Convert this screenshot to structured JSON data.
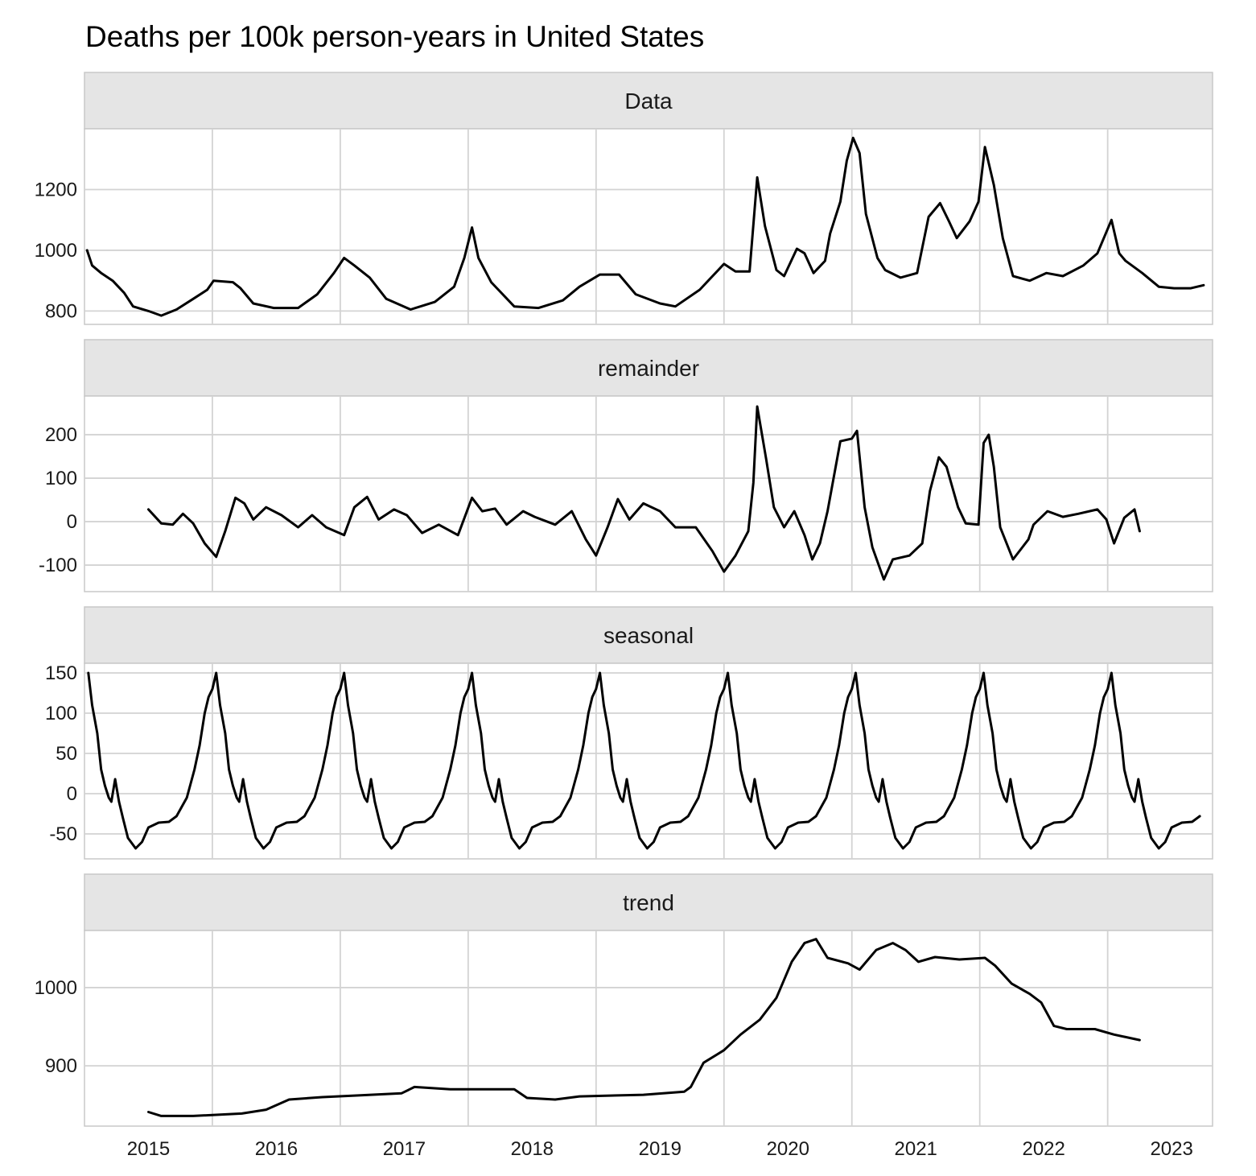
{
  "chart_data": {
    "type": "line",
    "title": "Deaths per 100k person-years in United States",
    "x_tick_labels": [
      "2015",
      "2016",
      "2017",
      "2018",
      "2019",
      "2020",
      "2021",
      "2022",
      "2023"
    ],
    "x_gridlines": [
      2016,
      2017,
      2018,
      2019,
      2020,
      2021,
      2022,
      2023
    ],
    "xlim": [
      2015.0,
      2023.82
    ],
    "panels": [
      {
        "name": "Data",
        "ylim": [
          756,
          1400
        ],
        "y_ticks": [
          800,
          1000,
          1200
        ],
        "y_tick_labels": [
          "800",
          "1000",
          "1200"
        ],
        "points": [
          [
            2015.02,
            1000
          ],
          [
            2015.06,
            950
          ],
          [
            2015.13,
            925
          ],
          [
            2015.22,
            900
          ],
          [
            2015.31,
            860
          ],
          [
            2015.38,
            815
          ],
          [
            2015.5,
            800
          ],
          [
            2015.6,
            785
          ],
          [
            2015.72,
            805
          ],
          [
            2015.85,
            840
          ],
          [
            2015.96,
            870
          ],
          [
            2016.01,
            900
          ],
          [
            2016.16,
            895
          ],
          [
            2016.22,
            875
          ],
          [
            2016.32,
            825
          ],
          [
            2016.48,
            810
          ],
          [
            2016.67,
            810
          ],
          [
            2016.82,
            855
          ],
          [
            2016.95,
            925
          ],
          [
            2017.03,
            975
          ],
          [
            2017.11,
            950
          ],
          [
            2017.23,
            910
          ],
          [
            2017.36,
            840
          ],
          [
            2017.55,
            805
          ],
          [
            2017.74,
            830
          ],
          [
            2017.89,
            880
          ],
          [
            2017.97,
            975
          ],
          [
            2018.03,
            1075
          ],
          [
            2018.08,
            975
          ],
          [
            2018.18,
            895
          ],
          [
            2018.36,
            815
          ],
          [
            2018.55,
            810
          ],
          [
            2018.74,
            835
          ],
          [
            2018.87,
            880
          ],
          [
            2019.03,
            920
          ],
          [
            2019.18,
            920
          ],
          [
            2019.31,
            855
          ],
          [
            2019.5,
            825
          ],
          [
            2019.62,
            815
          ],
          [
            2019.81,
            870
          ],
          [
            2020.0,
            955
          ],
          [
            2020.09,
            930
          ],
          [
            2020.2,
            930
          ],
          [
            2020.26,
            1240
          ],
          [
            2020.32,
            1080
          ],
          [
            2020.41,
            935
          ],
          [
            2020.47,
            915
          ],
          [
            2020.57,
            1005
          ],
          [
            2020.63,
            990
          ],
          [
            2020.7,
            925
          ],
          [
            2020.79,
            965
          ],
          [
            2020.83,
            1055
          ],
          [
            2020.91,
            1160
          ],
          [
            2020.96,
            1295
          ],
          [
            2021.01,
            1370
          ],
          [
            2021.06,
            1320
          ],
          [
            2021.11,
            1120
          ],
          [
            2021.2,
            975
          ],
          [
            2021.26,
            935
          ],
          [
            2021.38,
            910
          ],
          [
            2021.51,
            925
          ],
          [
            2021.6,
            1110
          ],
          [
            2021.69,
            1155
          ],
          [
            2021.76,
            1095
          ],
          [
            2021.82,
            1040
          ],
          [
            2021.92,
            1095
          ],
          [
            2021.99,
            1160
          ],
          [
            2022.04,
            1340
          ],
          [
            2022.11,
            1215
          ],
          [
            2022.18,
            1040
          ],
          [
            2022.26,
            915
          ],
          [
            2022.39,
            900
          ],
          [
            2022.52,
            925
          ],
          [
            2022.65,
            915
          ],
          [
            2022.81,
            950
          ],
          [
            2022.92,
            990
          ],
          [
            2023.03,
            1100
          ],
          [
            2023.09,
            990
          ],
          [
            2023.14,
            965
          ],
          [
            2023.27,
            925
          ],
          [
            2023.4,
            880
          ],
          [
            2023.52,
            875
          ],
          [
            2023.65,
            875
          ],
          [
            2023.75,
            885
          ]
        ]
      },
      {
        "name": "remainder",
        "ylim": [
          -161,
          289
        ],
        "y_ticks": [
          -100,
          0,
          100,
          200
        ],
        "y_tick_labels": [
          "-100",
          "0",
          "100",
          "200"
        ],
        "points": [
          [
            2015.5,
            28
          ],
          [
            2015.6,
            -4
          ],
          [
            2015.69,
            -7
          ],
          [
            2015.77,
            18
          ],
          [
            2015.85,
            -4
          ],
          [
            2015.94,
            -50
          ],
          [
            2016.03,
            -81
          ],
          [
            2016.1,
            -22
          ],
          [
            2016.18,
            55
          ],
          [
            2016.25,
            42
          ],
          [
            2016.32,
            5
          ],
          [
            2016.42,
            33
          ],
          [
            2016.54,
            15
          ],
          [
            2016.67,
            -13
          ],
          [
            2016.78,
            15
          ],
          [
            2016.89,
            -13
          ],
          [
            2017.03,
            -31
          ],
          [
            2017.11,
            33
          ],
          [
            2017.21,
            57
          ],
          [
            2017.3,
            5
          ],
          [
            2017.42,
            28
          ],
          [
            2017.52,
            15
          ],
          [
            2017.64,
            -26
          ],
          [
            2017.77,
            -7
          ],
          [
            2017.92,
            -31
          ],
          [
            2018.03,
            55
          ],
          [
            2018.11,
            24
          ],
          [
            2018.21,
            30
          ],
          [
            2018.3,
            -7
          ],
          [
            2018.43,
            24
          ],
          [
            2018.52,
            11
          ],
          [
            2018.68,
            -7
          ],
          [
            2018.81,
            24
          ],
          [
            2018.92,
            -41
          ],
          [
            2019.0,
            -78
          ],
          [
            2019.09,
            -13
          ],
          [
            2019.17,
            52
          ],
          [
            2019.26,
            5
          ],
          [
            2019.37,
            42
          ],
          [
            2019.5,
            24
          ],
          [
            2019.62,
            -13
          ],
          [
            2019.78,
            -13
          ],
          [
            2019.91,
            -68
          ],
          [
            2020.0,
            -115
          ],
          [
            2020.09,
            -78
          ],
          [
            2020.19,
            -22
          ],
          [
            2020.23,
            89
          ],
          [
            2020.26,
            265
          ],
          [
            2020.33,
            144
          ],
          [
            2020.39,
            33
          ],
          [
            2020.47,
            -13
          ],
          [
            2020.55,
            24
          ],
          [
            2020.63,
            -31
          ],
          [
            2020.69,
            -87
          ],
          [
            2020.75,
            -50
          ],
          [
            2020.81,
            24
          ],
          [
            2020.91,
            185
          ],
          [
            2021.0,
            191
          ],
          [
            2021.04,
            209
          ],
          [
            2021.1,
            33
          ],
          [
            2021.16,
            -59
          ],
          [
            2021.25,
            -133
          ],
          [
            2021.32,
            -87
          ],
          [
            2021.45,
            -78
          ],
          [
            2021.55,
            -50
          ],
          [
            2021.61,
            70
          ],
          [
            2021.68,
            148
          ],
          [
            2021.74,
            126
          ],
          [
            2021.83,
            33
          ],
          [
            2021.89,
            -4
          ],
          [
            2021.99,
            -7
          ],
          [
            2022.03,
            181
          ],
          [
            2022.07,
            200
          ],
          [
            2022.11,
            126
          ],
          [
            2022.16,
            -13
          ],
          [
            2022.26,
            -87
          ],
          [
            2022.38,
            -41
          ],
          [
            2022.42,
            -7
          ],
          [
            2022.53,
            24
          ],
          [
            2022.65,
            11
          ],
          [
            2022.77,
            18
          ],
          [
            2022.92,
            28
          ],
          [
            2022.99,
            5
          ],
          [
            2023.05,
            -50
          ],
          [
            2023.13,
            9
          ],
          [
            2023.21,
            28
          ],
          [
            2023.25,
            -22
          ]
        ]
      },
      {
        "name": "seasonal",
        "ylim": [
          -81,
          162
        ],
        "y_ticks": [
          -50,
          0,
          50,
          100,
          150
        ],
        "y_tick_labels": [
          "-50",
          "0",
          "50",
          "100",
          "150"
        ],
        "range": [
          2015.02,
          2023.75
        ],
        "annual_pattern": [
          [
            0.0,
            130
          ],
          [
            0.03,
            150
          ],
          [
            0.06,
            110
          ],
          [
            0.1,
            75
          ],
          [
            0.13,
            30
          ],
          [
            0.16,
            10
          ],
          [
            0.19,
            -5
          ],
          [
            0.21,
            -10
          ],
          [
            0.24,
            18
          ],
          [
            0.27,
            -10
          ],
          [
            0.3,
            -30
          ],
          [
            0.34,
            -55
          ],
          [
            0.4,
            -68
          ],
          [
            0.45,
            -60
          ],
          [
            0.5,
            -42
          ],
          [
            0.58,
            -36
          ],
          [
            0.66,
            -35
          ],
          [
            0.72,
            -28
          ],
          [
            0.8,
            -5
          ],
          [
            0.86,
            30
          ],
          [
            0.9,
            60
          ],
          [
            0.94,
            100
          ],
          [
            0.97,
            120
          ],
          [
            1.0,
            130
          ]
        ]
      },
      {
        "name": "trend",
        "ylim": [
          823,
          1073
        ],
        "y_ticks": [
          900,
          1000
        ],
        "y_tick_labels": [
          "900",
          "1000"
        ],
        "points": [
          [
            2015.5,
            841
          ],
          [
            2015.6,
            836
          ],
          [
            2015.85,
            836
          ],
          [
            2016.23,
            839
          ],
          [
            2016.42,
            844
          ],
          [
            2016.6,
            857
          ],
          [
            2016.86,
            860
          ],
          [
            2017.11,
            862
          ],
          [
            2017.48,
            865
          ],
          [
            2017.58,
            873
          ],
          [
            2017.86,
            870
          ],
          [
            2018.36,
            870
          ],
          [
            2018.46,
            859
          ],
          [
            2018.68,
            857
          ],
          [
            2018.87,
            861
          ],
          [
            2019.37,
            863
          ],
          [
            2019.69,
            867
          ],
          [
            2019.74,
            873
          ],
          [
            2019.84,
            904
          ],
          [
            2020.0,
            920
          ],
          [
            2020.13,
            940
          ],
          [
            2020.28,
            959
          ],
          [
            2020.41,
            987
          ],
          [
            2020.53,
            1033
          ],
          [
            2020.63,
            1057
          ],
          [
            2020.72,
            1062
          ],
          [
            2020.81,
            1038
          ],
          [
            2020.97,
            1031
          ],
          [
            2021.06,
            1023
          ],
          [
            2021.19,
            1048
          ],
          [
            2021.32,
            1057
          ],
          [
            2021.42,
            1048
          ],
          [
            2021.52,
            1033
          ],
          [
            2021.65,
            1039
          ],
          [
            2021.84,
            1036
          ],
          [
            2022.04,
            1038
          ],
          [
            2022.12,
            1028
          ],
          [
            2022.25,
            1005
          ],
          [
            2022.39,
            992
          ],
          [
            2022.48,
            981
          ],
          [
            2022.58,
            951
          ],
          [
            2022.68,
            947
          ],
          [
            2022.9,
            947
          ],
          [
            2023.05,
            940
          ],
          [
            2023.25,
            933
          ]
        ]
      }
    ]
  }
}
